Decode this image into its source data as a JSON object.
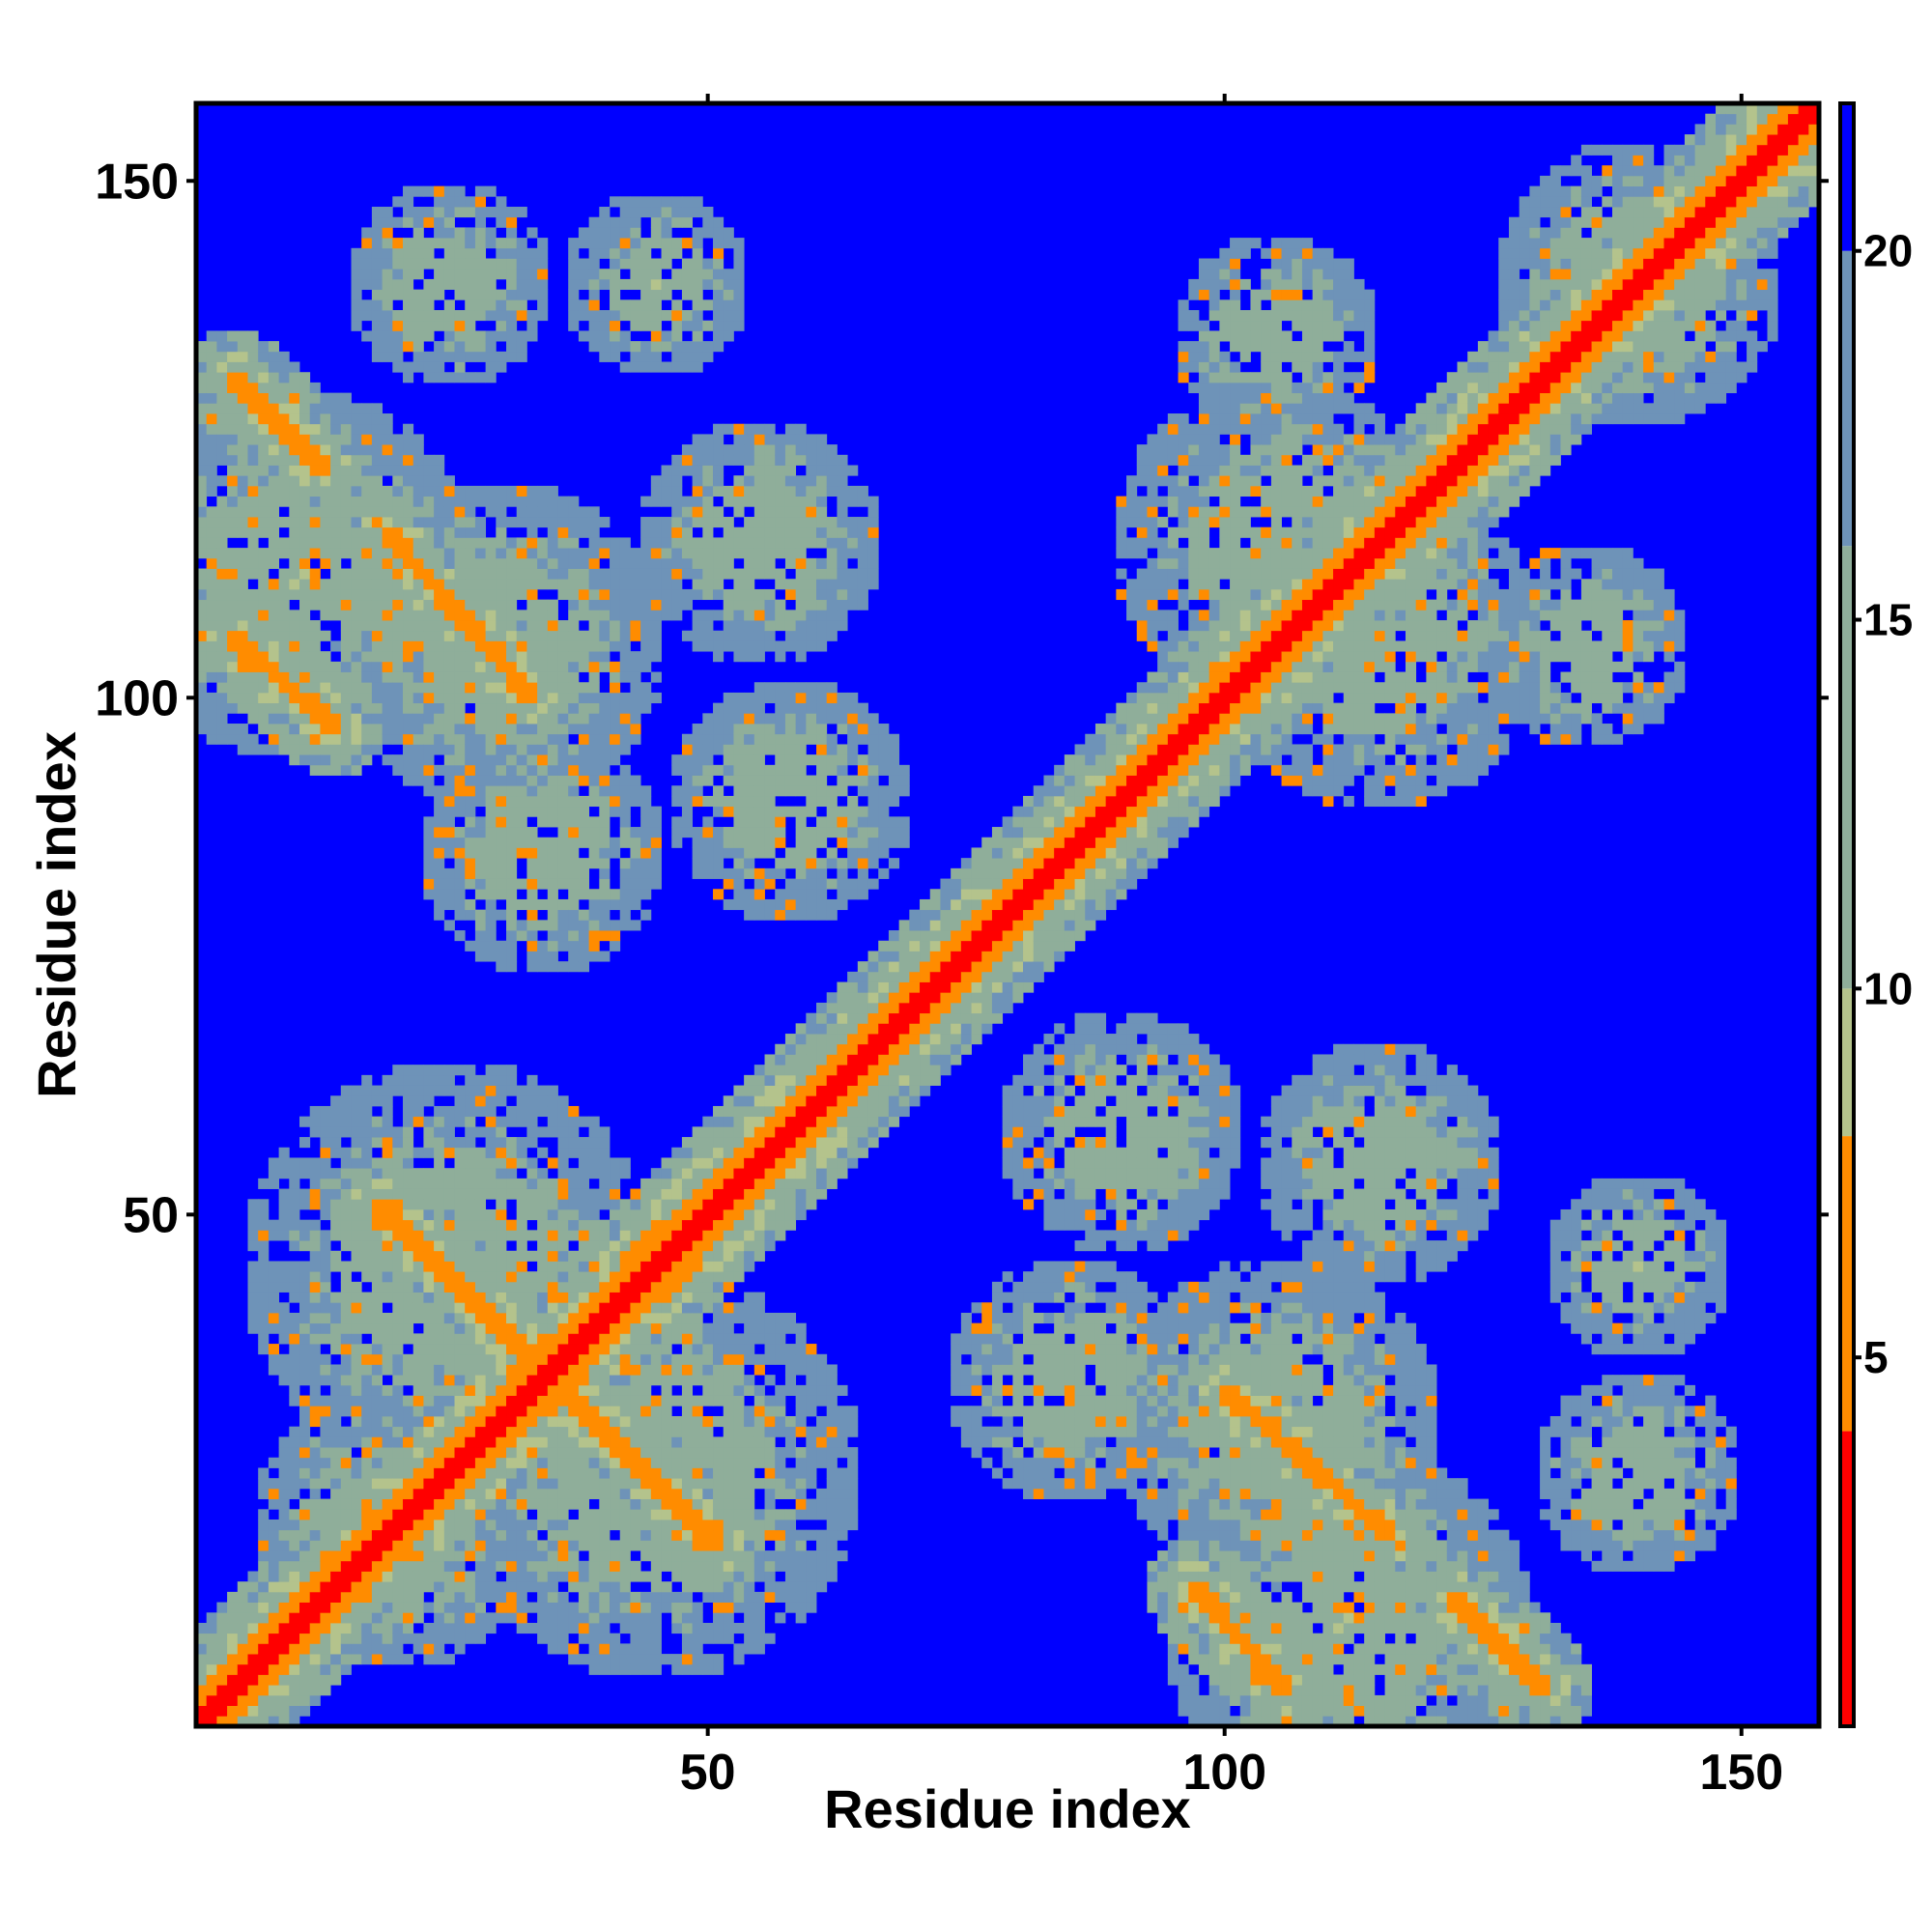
{
  "chart_data": {
    "type": "heatmap",
    "xlabel": "Residue index",
    "ylabel": "Residue index",
    "xlim": [
      1,
      157
    ],
    "ylim": [
      1,
      157
    ],
    "xticks": [
      50,
      100,
      150
    ],
    "yticks": [
      50,
      100,
      150
    ],
    "colorbar": {
      "range": [
        0,
        22
      ],
      "ticks": [
        5,
        10,
        15,
        20
      ],
      "segments": [
        {
          "from": 0,
          "to": 4,
          "color": "#ff0000"
        },
        {
          "from": 4,
          "to": 8,
          "color": "#ff8c00"
        },
        {
          "from": 8,
          "to": 10,
          "color": "#b4c38c"
        },
        {
          "from": 10,
          "to": 16,
          "color": "#8fae9a"
        },
        {
          "from": 16,
          "to": 20,
          "color": "#6e93b8"
        },
        {
          "from": 20,
          "to": 22,
          "color": "#0000ff"
        }
      ]
    },
    "colors": {
      "far": "#0000ff",
      "near": "#ff0000",
      "close": "#ff8c00",
      "mid": "#b4c38c",
      "mid2": "#8fae9a",
      "outer": "#6e93b8"
    },
    "structure": {
      "diagonal": {
        "from": 1,
        "to": 157,
        "width": 2
      },
      "contact_bands": [
        {
          "start": [
            4,
            131
          ],
          "end": [
            13,
            122
          ]
        },
        {
          "start": [
            4,
            106
          ],
          "end": [
            14,
            97
          ]
        },
        {
          "start": [
            19,
            116
          ],
          "end": [
            33,
            100
          ]
        },
        {
          "start": [
            18,
            51
          ],
          "end": [
            33,
            36
          ]
        },
        {
          "start": [
            35,
            33
          ],
          "end": [
            50,
            18
          ]
        },
        {
          "start": [
            42,
            45
          ],
          "end": [
            58,
            60
          ]
        },
        {
          "start": [
            97,
            34
          ],
          "end": [
            113,
            20
          ]
        },
        {
          "start": [
            97,
            14
          ],
          "end": [
            106,
            5
          ]
        },
        {
          "start": [
            122,
            13
          ],
          "end": [
            131,
            4
          ]
        },
        {
          "start": [
            51,
            18
          ],
          "end": [
            36,
            33
          ]
        },
        {
          "start": [
            130,
            127
          ],
          "end": [
            140,
            140
          ]
        },
        {
          "start": [
            88,
            86
          ],
          "end": [
            95,
            95
          ]
        }
      ],
      "halo_blobs": [
        {
          "center": [
            10,
            112
          ],
          "radius": 18
        },
        {
          "center": [
            30,
            105
          ],
          "radius": 16
        },
        {
          "center": [
            34,
            85
          ],
          "radius": 12
        },
        {
          "center": [
            25,
            140
          ],
          "radius": 10
        },
        {
          "center": [
            45,
            140
          ],
          "radius": 9
        },
        {
          "center": [
            55,
            115
          ],
          "radius": 12
        },
        {
          "center": [
            58,
            90
          ],
          "radius": 12
        },
        {
          "center": [
            25,
            45
          ],
          "radius": 20
        },
        {
          "center": [
            45,
            25
          ],
          "radius": 20
        },
        {
          "center": [
            20,
            20
          ],
          "radius": 14
        },
        {
          "center": [
            30,
            10
          ],
          "radius": 12
        },
        {
          "center": [
            105,
            30
          ],
          "radius": 16
        },
        {
          "center": [
            110,
            12
          ],
          "radius": 14
        },
        {
          "center": [
            90,
            55
          ],
          "radius": 16
        },
        {
          "center": [
            80,
            70
          ],
          "radius": 10
        },
        {
          "center": [
            105,
            115
          ],
          "radius": 16
        },
        {
          "center": [
            105,
            135
          ],
          "radius": 10
        },
        {
          "center": [
            128,
            105
          ],
          "radius": 14
        },
        {
          "center": [
            140,
            140
          ],
          "radius": 14
        },
        {
          "center": [
            128,
            30
          ],
          "radius": 10
        },
        {
          "center": [
            135,
            50
          ],
          "radius": 8
        },
        {
          "center": [
            112,
            50
          ],
          "radius": 10
        }
      ]
    }
  }
}
